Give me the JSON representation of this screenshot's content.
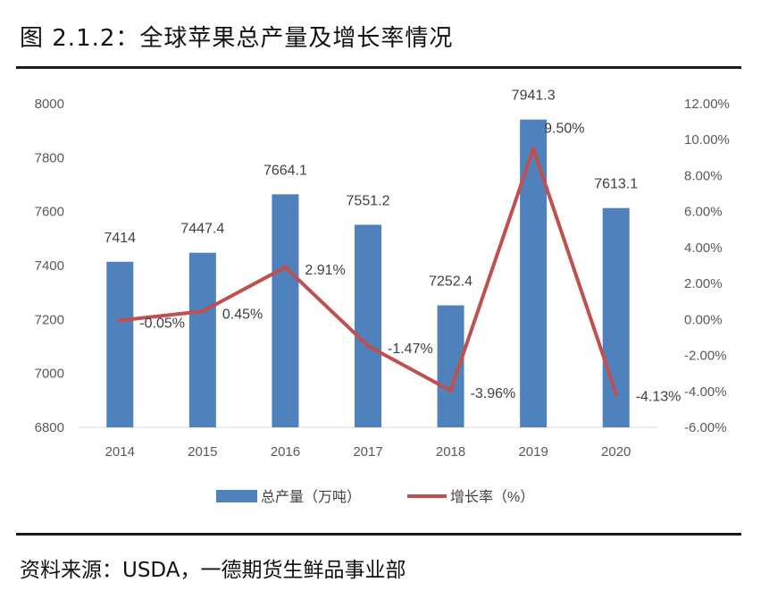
{
  "figure": {
    "title": "图 2.1.2：全球苹果总产量及增长率情况",
    "source": "资料来源：USDA，一德期货生鲜品事业部"
  },
  "chart_data": {
    "type": "bar",
    "categories": [
      "2014",
      "2015",
      "2016",
      "2017",
      "2018",
      "2019",
      "2020"
    ],
    "series": [
      {
        "name": "总产量（万吨）",
        "type": "bar",
        "axis": "left",
        "color": "#4f81bd",
        "values": [
          7414,
          7447.4,
          7664.1,
          7551.2,
          7252.4,
          7941.3,
          7613.1
        ],
        "labels": [
          "7414",
          "7447.4",
          "7664.1",
          "7551.2",
          "7252.4",
          "7941.3",
          "7613.1"
        ]
      },
      {
        "name": "增长率（%）",
        "type": "line",
        "axis": "right",
        "color": "#c0504d",
        "values": [
          -0.05,
          0.45,
          2.91,
          -1.47,
          -3.96,
          9.5,
          -4.13
        ],
        "labels": [
          "-0.05%",
          "0.45%",
          "2.91%",
          "-1.47%",
          "-3.96%",
          "9.50%",
          "-4.13%"
        ]
      }
    ],
    "y_left": {
      "min": 6800,
      "max": 8000,
      "ticks": [
        "6800",
        "7000",
        "7200",
        "7400",
        "7600",
        "7800",
        "8000"
      ]
    },
    "y_right": {
      "min": -6,
      "max": 12,
      "ticks": [
        "-6.00%",
        "-4.00%",
        "-2.00%",
        "0.00%",
        "2.00%",
        "4.00%",
        "6.00%",
        "8.00%",
        "10.00%",
        "12.00%"
      ]
    },
    "legend_position": "bottom",
    "grid": false
  }
}
